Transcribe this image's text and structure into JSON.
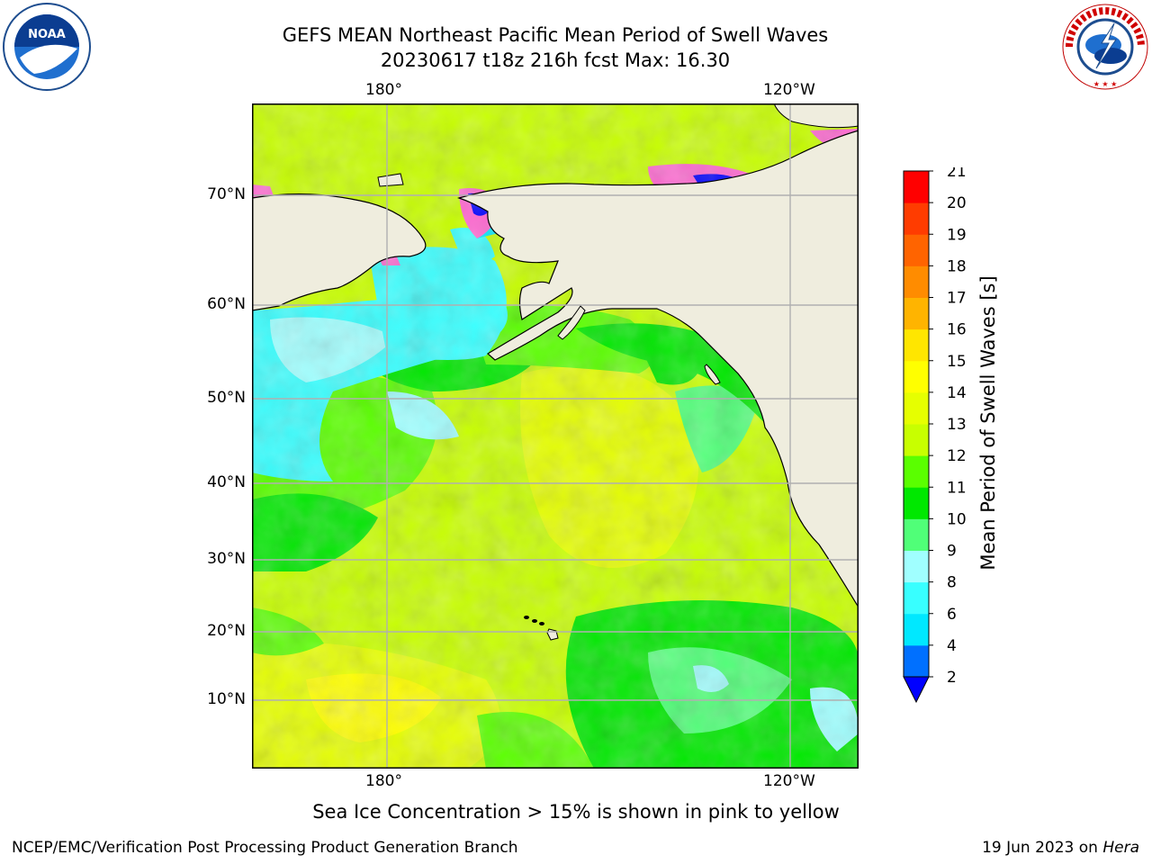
{
  "title": {
    "line1": "GEFS MEAN Northeast Pacific Mean Period of Swell Waves",
    "line2": "20230617 t18z 216h fcst   Max: 16.30"
  },
  "logos": {
    "left": "noaa-logo",
    "right": "nws-logo"
  },
  "map": {
    "lon_labels_top": [
      "180°",
      "120°W"
    ],
    "lon_labels_bottom": [
      "180°",
      "120°W"
    ],
    "lat_labels": [
      "70°N",
      "60°N",
      "50°N",
      "40°N",
      "30°N",
      "20°N",
      "10°N"
    ],
    "colors": {
      "land": "#efedde",
      "grid": "#b0b0b0",
      "coast": "#000000"
    }
  },
  "colorbar": {
    "label": "Mean Period of Swell Waves [s]",
    "ticks": [
      "2",
      "4",
      "6",
      "8",
      "9",
      "10",
      "11",
      "12",
      "13",
      "14",
      "15",
      "16",
      "17",
      "18",
      "19",
      "20",
      "21"
    ],
    "colors": [
      "#0070ff",
      "#00e8ff",
      "#38ffff",
      "#a0ffff",
      "#50ff78",
      "#00e800",
      "#5aff00",
      "#c8ff00",
      "#e6ff00",
      "#ffff00",
      "#ffe600",
      "#ffb400",
      "#ff8c00",
      "#ff6400",
      "#ff3c00",
      "#ff0000"
    ],
    "extend_low_color": "#0000ff"
  },
  "footer": {
    "note": "Sea Ice Concentration > 15% is shown in pink to yellow",
    "left": "NCEP/EMC/Verification Post Processing Product Generation Branch",
    "date": "19 Jun 2023 on ",
    "host": "Hera"
  }
}
